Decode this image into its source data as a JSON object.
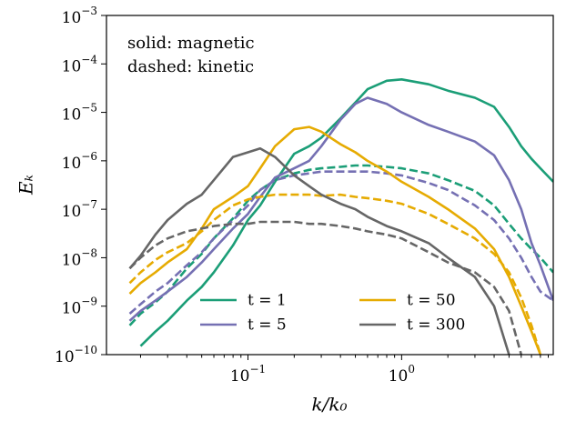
{
  "chart_data": {
    "type": "line",
    "annotations": [
      "solid: magnetic",
      "dashed: kinetic"
    ],
    "xlabel": "k/k₀",
    "ylabel": "Eₖ",
    "log_x": true,
    "log_y": true,
    "legend": "lower center",
    "xlim": [
      0.012,
      9.7
    ],
    "ylim": [
      1e-10,
      0.001
    ],
    "xticks": [
      {
        "value": 0.1,
        "label": "10−1"
      },
      {
        "value": 1,
        "label": "100"
      }
    ],
    "yticks": [
      {
        "value": 1e-10,
        "label": "10−10"
      },
      {
        "value": 1e-09,
        "label": "10−9"
      },
      {
        "value": 1e-08,
        "label": "10−8"
      },
      {
        "value": 1e-07,
        "label": "10−7"
      },
      {
        "value": 1e-06,
        "label": "10−6"
      },
      {
        "value": 1e-05,
        "label": "10−5"
      },
      {
        "value": 0.0001,
        "label": "10−4"
      },
      {
        "value": 0.001,
        "label": "10−3"
      }
    ],
    "x": [
      0.017,
      0.02,
      0.025,
      0.03,
      0.04,
      0.05,
      0.06,
      0.08,
      0.1,
      0.12,
      0.15,
      0.2,
      0.25,
      0.3,
      0.4,
      0.5,
      0.6,
      0.8,
      1,
      1.5,
      2,
      3,
      4,
      5,
      6,
      7,
      8,
      9.7
    ],
    "series": [
      {
        "name": "t = 1",
        "color": "#1b9e77",
        "values": [
          null,
          1.5e-10,
          3e-10,
          5e-10,
          1.3e-09,
          2.5e-09,
          5e-09,
          1.8e-08,
          6e-08,
          1.2e-07,
          3.7e-07,
          1.4e-06,
          2e-06,
          3e-06,
          7.5e-06,
          1.6e-05,
          3e-05,
          4.5e-05,
          4.8e-05,
          3.8e-05,
          2.8e-05,
          2e-05,
          1.3e-05,
          5e-06,
          2e-06,
          1.1e-06,
          7e-07,
          3.7e-07
        ],
        "kinetic": [
          4e-10,
          7e-10,
          1.2e-09,
          2e-09,
          6e-09,
          1.2e-08,
          2.5e-08,
          6.5e-08,
          1.5e-07,
          2.5e-07,
          4e-07,
          5.5e-07,
          6.5e-07,
          7e-07,
          7.5e-07,
          8e-07,
          8e-07,
          7.5e-07,
          7e-07,
          5.5e-07,
          4e-07,
          2.4e-07,
          1.2e-07,
          5e-08,
          2.5e-08,
          1.5e-08,
          1e-08,
          5e-09
        ]
      },
      {
        "name": "t = 5",
        "color": "#7570b3",
        "values": [
          5e-10,
          8e-10,
          1.3e-09,
          2e-09,
          4e-09,
          8e-09,
          1.5e-08,
          4e-08,
          8e-08,
          1.8e-07,
          4.5e-07,
          7e-07,
          1e-06,
          2e-06,
          7e-06,
          1.5e-05,
          2e-05,
          1.5e-05,
          1e-05,
          5.5e-06,
          4e-06,
          2.5e-06,
          1.3e-06,
          4e-07,
          1e-07,
          2e-08,
          7e-09,
          1.3e-09
        ],
        "kinetic": [
          7e-10,
          1.1e-09,
          2e-09,
          3e-09,
          7e-09,
          1.3e-08,
          2.5e-08,
          6e-08,
          1.2e-07,
          2.5e-07,
          4e-07,
          5e-07,
          5.5e-07,
          6e-07,
          6e-07,
          6e-07,
          6e-07,
          5.5e-07,
          5e-07,
          3.5e-07,
          2.5e-07,
          1.2e-07,
          6e-08,
          2.5e-08,
          1e-08,
          4e-09,
          2e-09,
          1.3e-09
        ]
      },
      {
        "name": "t = 50",
        "color": "#e6ab02",
        "values": [
          1.8e-09,
          3e-09,
          5e-09,
          8e-09,
          1.5e-08,
          4e-08,
          1e-07,
          1.8e-07,
          3e-07,
          7e-07,
          2e-06,
          4.5e-06,
          5e-06,
          4e-06,
          2.2e-06,
          1.5e-06,
          1e-06,
          6e-07,
          3.7e-07,
          1.8e-07,
          1e-07,
          4e-08,
          1.5e-08,
          4e-09,
          1e-09,
          3e-10,
          1e-10,
          null
        ],
        "kinetic": [
          3e-09,
          5e-09,
          9e-09,
          1.3e-08,
          2e-08,
          3.5e-08,
          6e-08,
          1.2e-07,
          1.6e-07,
          1.8e-07,
          2e-07,
          2e-07,
          2e-07,
          1.9e-07,
          2e-07,
          1.8e-07,
          1.7e-07,
          1.5e-07,
          1.3e-07,
          8e-08,
          5e-08,
          2.5e-08,
          1.2e-08,
          5e-09,
          1.5e-09,
          4e-10,
          1e-10,
          null
        ]
      },
      {
        "name": "t = 300",
        "color": "#666666",
        "values": [
          6e-09,
          1.1e-08,
          3e-08,
          6e-08,
          1.3e-07,
          2e-07,
          4e-07,
          1.2e-06,
          1.5e-06,
          1.8e-06,
          1.2e-06,
          5e-07,
          3e-07,
          2e-07,
          1.3e-07,
          1e-07,
          7e-08,
          4.5e-08,
          3.5e-08,
          2e-08,
          1e-08,
          4e-09,
          1e-09,
          1e-10,
          null,
          null,
          null,
          null
        ],
        "kinetic": [
          6e-09,
          1e-08,
          1.8e-08,
          2.5e-08,
          3.5e-08,
          4e-08,
          4.5e-08,
          5e-08,
          5e-08,
          5.5e-08,
          5.5e-08,
          5.5e-08,
          5e-08,
          5e-08,
          4.5e-08,
          4e-08,
          3.5e-08,
          3e-08,
          2.5e-08,
          1.3e-08,
          8e-09,
          5e-09,
          2.5e-09,
          8e-10,
          1e-10,
          null,
          null,
          null
        ]
      }
    ]
  }
}
